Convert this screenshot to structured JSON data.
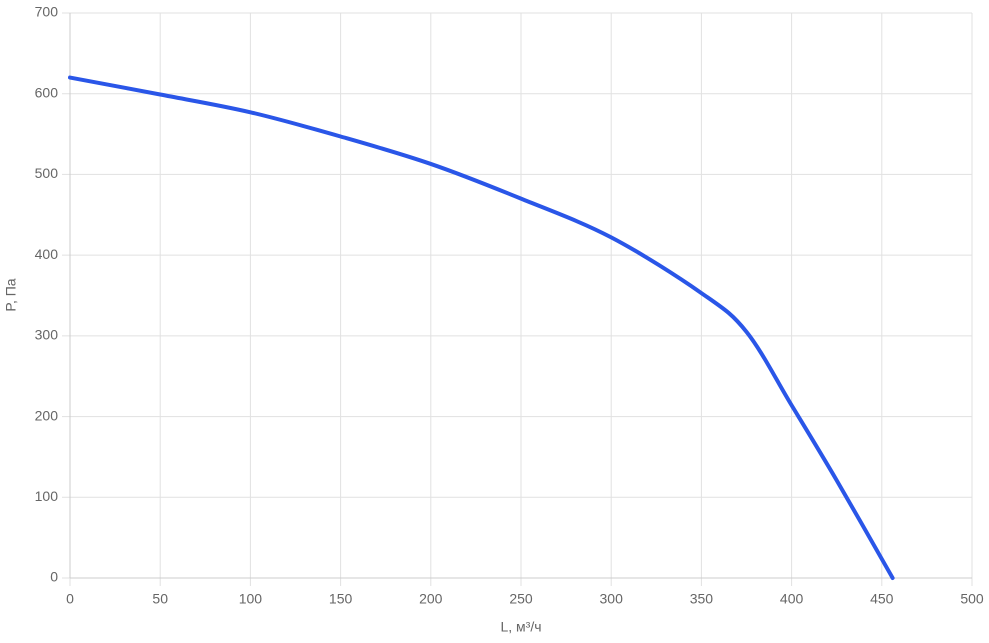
{
  "chart_data": {
    "type": "line",
    "xlabel": "L, м³/ч",
    "ylabel": "P, Па",
    "x": [
      0,
      50,
      100,
      150,
      200,
      250,
      300,
      350,
      375,
      400,
      425,
      456
    ],
    "series": [
      {
        "name": "P",
        "color": "#2a56e8",
        "values": [
          620,
          599,
          577,
          547,
          513,
          470,
          422,
          353,
          305,
          214,
          121,
          0
        ]
      }
    ],
    "xlim": [
      0,
      500
    ],
    "xticks": [
      0,
      50,
      100,
      150,
      200,
      250,
      300,
      350,
      400,
      450,
      500
    ],
    "ylim": [
      0,
      700
    ],
    "yticks": [
      0,
      100,
      200,
      300,
      400,
      500,
      600,
      700
    ],
    "grid": true
  }
}
